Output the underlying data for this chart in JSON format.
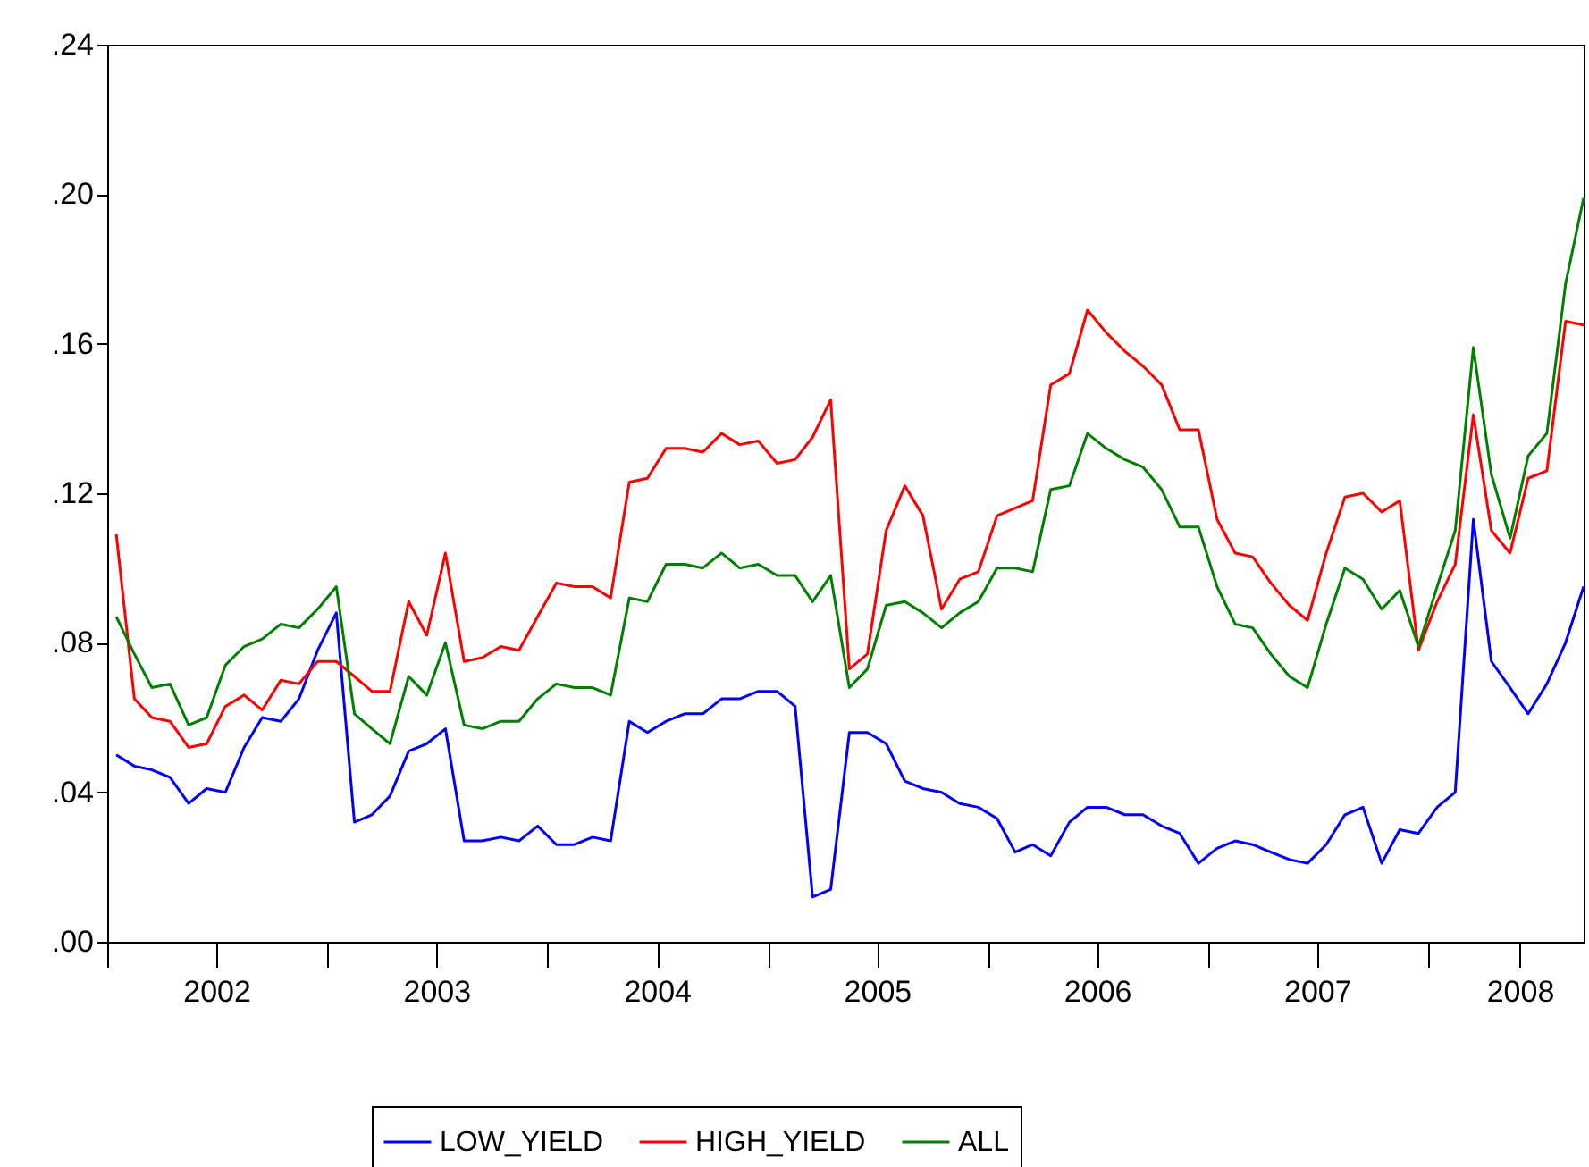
{
  "chart_data": {
    "type": "line",
    "x": [
      "2002-01-16",
      "2002-02-15",
      "2002-03-16",
      "2002-04-15",
      "2002-05-16",
      "2002-06-15",
      "2002-07-16",
      "2002-08-16",
      "2002-09-15",
      "2002-10-16",
      "2002-11-15",
      "2002-12-16",
      "2003-01-16",
      "2003-02-15",
      "2003-03-16",
      "2003-04-15",
      "2003-05-16",
      "2003-06-15",
      "2003-07-16",
      "2003-08-16",
      "2003-09-15",
      "2003-10-16",
      "2003-11-15",
      "2003-12-16",
      "2004-01-16",
      "2004-02-15",
      "2004-03-16",
      "2004-04-15",
      "2004-05-16",
      "2004-06-15",
      "2004-07-16",
      "2004-08-16",
      "2004-09-15",
      "2004-10-16",
      "2004-11-15",
      "2004-12-16",
      "2005-01-16",
      "2005-02-15",
      "2005-03-16",
      "2005-04-15",
      "2005-05-16",
      "2005-06-15",
      "2005-07-16",
      "2005-08-16",
      "2005-09-15",
      "2005-10-16",
      "2005-11-15",
      "2005-12-16",
      "2006-01-16",
      "2006-02-15",
      "2006-03-16",
      "2006-04-15",
      "2006-05-16",
      "2006-06-15",
      "2006-07-16",
      "2006-08-16",
      "2006-09-15",
      "2006-10-16",
      "2006-11-15",
      "2006-12-16",
      "2007-01-16",
      "2007-02-15",
      "2007-03-16",
      "2007-04-15",
      "2007-05-16",
      "2007-06-15",
      "2007-07-16",
      "2007-08-16",
      "2007-09-15",
      "2007-10-16",
      "2007-11-15",
      "2007-12-16",
      "2008-01-16",
      "2008-02-15",
      "2008-03-16",
      "2008-04-15",
      "2008-05-16",
      "2008-06-15",
      "2008-07-16",
      "2008-08-16",
      "2008-09-15"
    ],
    "series": [
      {
        "name": "LOW_YIELD",
        "color": "#0000ff",
        "values": [
          0.05,
          0.047,
          0.046,
          0.044,
          0.037,
          0.041,
          0.04,
          0.052,
          0.06,
          0.059,
          0.065,
          0.078,
          0.088,
          0.032,
          0.034,
          0.039,
          0.051,
          0.053,
          0.057,
          0.027,
          0.027,
          0.028,
          0.027,
          0.031,
          0.026,
          0.026,
          0.028,
          0.027,
          0.059,
          0.056,
          0.059,
          0.061,
          0.061,
          0.065,
          0.065,
          0.067,
          0.067,
          0.063,
          0.012,
          0.014,
          0.056,
          0.056,
          0.053,
          0.043,
          0.041,
          0.04,
          0.037,
          0.036,
          0.033,
          0.024,
          0.026,
          0.023,
          0.032,
          0.036,
          0.036,
          0.034,
          0.034,
          0.031,
          0.029,
          0.021,
          0.025,
          0.027,
          0.026,
          0.024,
          0.022,
          0.021,
          0.026,
          0.034,
          0.036,
          0.021,
          0.03,
          0.029,
          0.036,
          0.04,
          0.113,
          0.075,
          0.068,
          0.061,
          0.069,
          0.08,
          0.095
        ]
      },
      {
        "name": "HIGH_YIELD",
        "color": "#ff0000",
        "values": [
          0.109,
          0.065,
          0.06,
          0.059,
          0.052,
          0.053,
          0.063,
          0.066,
          0.062,
          0.07,
          0.069,
          0.075,
          0.075,
          0.071,
          0.067,
          0.067,
          0.091,
          0.082,
          0.104,
          0.075,
          0.076,
          0.079,
          0.078,
          0.087,
          0.096,
          0.095,
          0.095,
          0.092,
          0.123,
          0.124,
          0.132,
          0.132,
          0.131,
          0.136,
          0.133,
          0.134,
          0.128,
          0.129,
          0.135,
          0.145,
          0.073,
          0.077,
          0.11,
          0.122,
          0.114,
          0.089,
          0.097,
          0.099,
          0.114,
          0.116,
          0.118,
          0.149,
          0.152,
          0.169,
          0.163,
          0.158,
          0.154,
          0.149,
          0.137,
          0.137,
          0.113,
          0.104,
          0.103,
          0.096,
          0.09,
          0.086,
          0.104,
          0.119,
          0.12,
          0.115,
          0.118,
          0.078,
          0.091,
          0.101,
          0.141,
          0.11,
          0.104,
          0.124,
          0.126,
          0.166,
          0.165
        ]
      },
      {
        "name": "ALL",
        "color": "#008000",
        "values": [
          0.087,
          0.077,
          0.068,
          0.069,
          0.058,
          0.06,
          0.074,
          0.079,
          0.081,
          0.085,
          0.084,
          0.089,
          0.095,
          0.061,
          0.057,
          0.053,
          0.071,
          0.066,
          0.08,
          0.058,
          0.057,
          0.059,
          0.059,
          0.065,
          0.069,
          0.068,
          0.068,
          0.066,
          0.092,
          0.091,
          0.101,
          0.101,
          0.1,
          0.104,
          0.1,
          0.101,
          0.098,
          0.098,
          0.091,
          0.098,
          0.068,
          0.073,
          0.09,
          0.091,
          0.088,
          0.084,
          0.088,
          0.091,
          0.1,
          0.1,
          0.099,
          0.121,
          0.122,
          0.136,
          0.132,
          0.129,
          0.127,
          0.121,
          0.111,
          0.111,
          0.095,
          0.085,
          0.084,
          0.077,
          0.071,
          0.068,
          0.085,
          0.1,
          0.097,
          0.089,
          0.094,
          0.079,
          0.095,
          0.11,
          0.159,
          0.125,
          0.108,
          0.13,
          0.136,
          0.176,
          0.199
        ]
      }
    ],
    "xlim": [
      "2002-01-01",
      "2008-09-15"
    ],
    "xticks": [
      {
        "value": "2002-01-01",
        "label": null
      },
      {
        "value": "2002-07-01",
        "label": "2002"
      },
      {
        "value": "2003-01-01",
        "label": null
      },
      {
        "value": "2003-07-01",
        "label": "2003"
      },
      {
        "value": "2004-01-01",
        "label": null
      },
      {
        "value": "2004-07-01",
        "label": "2004"
      },
      {
        "value": "2005-01-01",
        "label": null
      },
      {
        "value": "2005-07-01",
        "label": "2005"
      },
      {
        "value": "2006-01-01",
        "label": null
      },
      {
        "value": "2006-07-01",
        "label": "2006"
      },
      {
        "value": "2007-01-01",
        "label": null
      },
      {
        "value": "2007-07-01",
        "label": "2007"
      },
      {
        "value": "2008-01-01",
        "label": null
      },
      {
        "value": "2008-06-01",
        "label": "2008"
      }
    ],
    "ylim": [
      0,
      0.24
    ],
    "yticks": [
      {
        "value": 0,
        "label": ".00"
      },
      {
        "value": 0.04,
        "label": ".04"
      },
      {
        "value": 0.08,
        "label": ".08"
      },
      {
        "value": 0.12,
        "label": ".12"
      },
      {
        "value": 0.16,
        "label": ".16"
      },
      {
        "value": 0.2,
        "label": ".20"
      },
      {
        "value": 0.24,
        "label": ".24"
      }
    ],
    "legend": "bottom",
    "line_style": "solid"
  }
}
